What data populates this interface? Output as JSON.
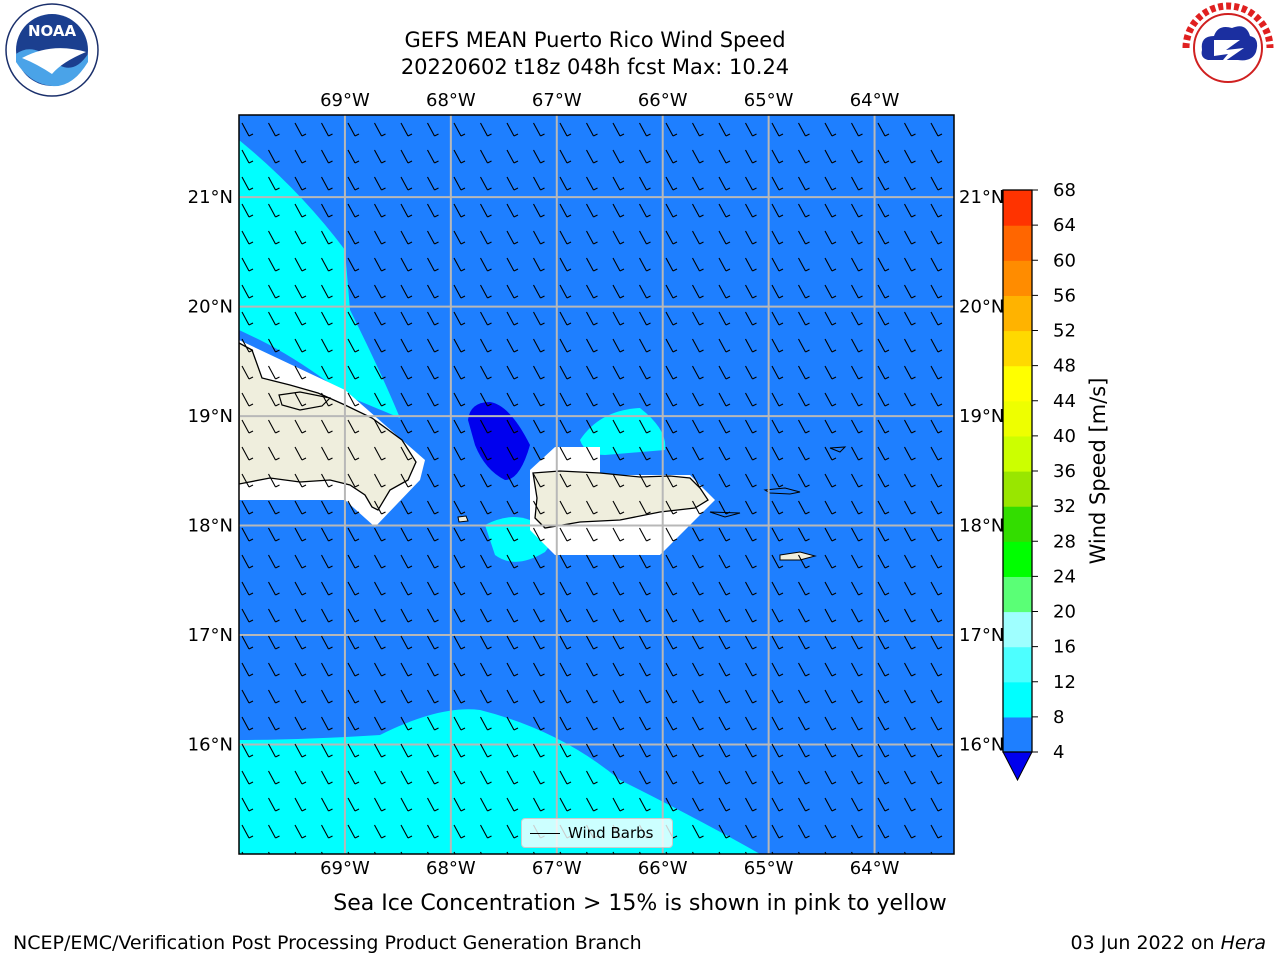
{
  "title": {
    "line1": "GEFS MEAN Puerto Rico Wind Speed",
    "line2": "20220602 t18z 048h fcst   Max: 10.24"
  },
  "map": {
    "lon_labels": [
      "69°W",
      "68°W",
      "67°W",
      "66°W",
      "65°W",
      "64°W"
    ],
    "lat_labels": [
      "21°N",
      "20°N",
      "19°N",
      "18°N",
      "17°N",
      "16°N"
    ],
    "lon_values": [
      -69,
      -68,
      -67,
      -66,
      -65,
      -64
    ],
    "lat_values": [
      21,
      20,
      19,
      18,
      17,
      16
    ],
    "extent": {
      "lon_min": -70,
      "lon_max": -63.25,
      "lat_min": 15,
      "lat_max": 21.75
    },
    "background_color": "#1e7fff",
    "land_color": "#efeedd",
    "grid": true
  },
  "legend": {
    "wind_barbs_label": "Wind Barbs"
  },
  "colorbar": {
    "label": "Wind Speed [m/s]",
    "ticks": [
      "68",
      "64",
      "60",
      "56",
      "52",
      "48",
      "44",
      "40",
      "36",
      "32",
      "28",
      "24",
      "20",
      "16",
      "12",
      "8",
      "4"
    ],
    "bounds": [
      4,
      8,
      12,
      16,
      20,
      24,
      28,
      32,
      36,
      40,
      44,
      48,
      52,
      56,
      60,
      64,
      68
    ],
    "colors": [
      "#1e7fff",
      "#00ffff",
      "#4dffff",
      "#9fffff",
      "#5aff76",
      "#00ff00",
      "#33dd00",
      "#99e600",
      "#ccff00",
      "#eeff00",
      "#ffff00",
      "#ffd900",
      "#ffb300",
      "#ff8c00",
      "#ff6600",
      "#ff3300",
      "#ff0000"
    ],
    "under_color": "#0000ee"
  },
  "footer": {
    "note": "Sea Ice Concentration > 15% is shown in pink to yellow",
    "branch": "NCEP/EMC/Verification Post Processing Product Generation Branch",
    "date": "03 Jun 2022 on ",
    "machine": "Hera"
  },
  "logos": {
    "left": "noaa-logo",
    "right": "nws-logo"
  }
}
